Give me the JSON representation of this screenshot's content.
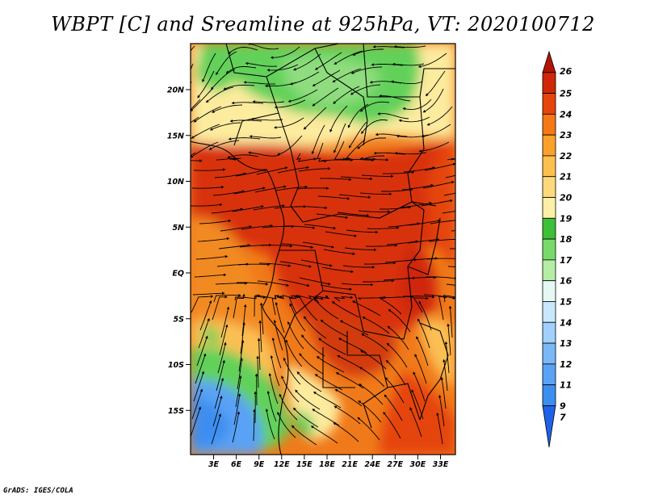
{
  "title": "WBPT [C] and Sreamline at 925hPa, VT: 2020100712",
  "credit": "GrADS: IGES/COLA",
  "map": {
    "lat_labels": [
      "20N",
      "15N",
      "10N",
      "5N",
      "EQ",
      "5S",
      "10S",
      "15S"
    ],
    "lon_labels": [
      "3E",
      "6E",
      "9E",
      "12E",
      "15E",
      "18E",
      "21E",
      "24E",
      "27E",
      "30E",
      "33E"
    ]
  },
  "colorbar": {
    "levels": [
      "7",
      "9",
      "11",
      "12",
      "13",
      "14",
      "15",
      "16",
      "17",
      "18",
      "19",
      "20",
      "21",
      "22",
      "23",
      "24",
      "25",
      "26"
    ],
    "colors": [
      "#1f62e8",
      "#3c8ef0",
      "#5aa2f5",
      "#7ab8f8",
      "#a0d0fb",
      "#c9e8fd",
      "#e6f8f4",
      "#b5eda5",
      "#79d96b",
      "#3dbf37",
      "#fdf0a6",
      "#fdd97b",
      "#fdbf4e",
      "#fba02a",
      "#f57716",
      "#e5450c",
      "#cf2708",
      "#b31404"
    ]
  },
  "colors": {
    "land_hot": "#d8300c",
    "land_warm": "#f07a1a",
    "land_mild": "#fbbf52",
    "land_cool": "#fdeb9e",
    "green": "#62d15a",
    "blue": "#5aa2f5"
  }
}
